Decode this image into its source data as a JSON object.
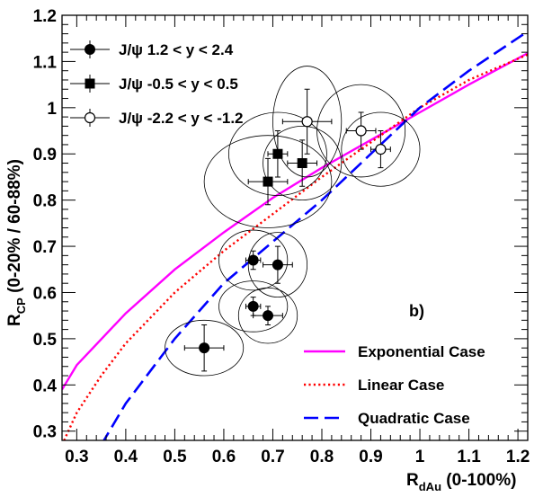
{
  "chart_data": {
    "type": "scatter",
    "title": "",
    "panel_label": "b)",
    "xlabel": {
      "main": "R",
      "sub": "dAu",
      "rest": " (0-100%)"
    },
    "ylabel": {
      "main": "R",
      "sub": "CP",
      "rest": " (0-20% / 60-88%)"
    },
    "xlim": [
      0.27,
      1.22
    ],
    "ylim": [
      0.28,
      1.2
    ],
    "x_ticks": [
      "0.3",
      "0.4",
      "0.5",
      "0.6",
      "0.7",
      "0.8",
      "0.9",
      "1",
      "1.1",
      "1.2"
    ],
    "y_ticks": [
      "0.3",
      "0.4",
      "0.5",
      "0.6",
      "0.7",
      "0.8",
      "0.9",
      "1",
      "1.1",
      "1.2"
    ],
    "legend_placement": "top-left",
    "series": [
      {
        "name": "J/ψ 1.2 < y < 2.4",
        "marker": "filled-circle",
        "points": [
          {
            "x": 0.56,
            "y": 0.48,
            "xerr": 0.04,
            "yerr": 0.05,
            "ex": 0.08,
            "ey": 0.06
          },
          {
            "x": 0.66,
            "y": 0.57,
            "xerr": 0.015,
            "yerr": 0.02,
            "ex": 0.07,
            "ey": 0.055
          },
          {
            "x": 0.69,
            "y": 0.55,
            "xerr": 0.03,
            "yerr": 0.02,
            "ex": 0.06,
            "ey": 0.06
          },
          {
            "x": 0.66,
            "y": 0.67,
            "xerr": 0.015,
            "yerr": 0.02,
            "ex": 0.07,
            "ey": 0.065
          },
          {
            "x": 0.71,
            "y": 0.66,
            "xerr": 0.03,
            "yerr": 0.04,
            "ex": 0.06,
            "ey": 0.07
          }
        ]
      },
      {
        "name": "J/ψ -0.5 < y < 0.5",
        "marker": "filled-square",
        "points": [
          {
            "x": 0.69,
            "y": 0.84,
            "xerr": 0.04,
            "yerr": 0.05,
            "ex": 0.13,
            "ey": 0.1
          },
          {
            "x": 0.71,
            "y": 0.9,
            "xerr": 0.02,
            "yerr": 0.05,
            "ex": 0.1,
            "ey": 0.09
          },
          {
            "x": 0.76,
            "y": 0.88,
            "xerr": 0.03,
            "yerr": 0.05,
            "ex": 0.08,
            "ey": 0.08
          }
        ]
      },
      {
        "name": "J/ψ -2.2 < y < -1.2",
        "marker": "open-circle",
        "points": [
          {
            "x": 0.77,
            "y": 0.97,
            "xerr": 0.05,
            "yerr": 0.07,
            "ex": 0.07,
            "ey": 0.12
          },
          {
            "x": 0.88,
            "y": 0.95,
            "xerr": 0.03,
            "yerr": 0.04,
            "ex": 0.09,
            "ey": 0.1
          },
          {
            "x": 0.92,
            "y": 0.91,
            "xerr": 0.02,
            "yerr": 0.04,
            "ex": 0.08,
            "ey": 0.08
          }
        ]
      }
    ],
    "curves": [
      {
        "name": "Exponential Case",
        "color": "#ff00ff",
        "style": "solid",
        "x": [
          0.27,
          0.3,
          0.4,
          0.5,
          0.6,
          0.7,
          0.8,
          0.9,
          1.0,
          1.1,
          1.22
        ],
        "y": [
          0.39,
          0.443,
          0.555,
          0.65,
          0.73,
          0.805,
          0.87,
          0.93,
          0.99,
          1.05,
          1.118
        ]
      },
      {
        "name": "Linear Case",
        "color": "#ff0000",
        "style": "dotted",
        "x": [
          0.27,
          0.3,
          0.35,
          0.4,
          0.5,
          0.6,
          0.7,
          0.8,
          0.9,
          1.0,
          1.1,
          1.22
        ],
        "y": [
          0.27,
          0.34,
          0.42,
          0.49,
          0.6,
          0.69,
          0.77,
          0.85,
          0.925,
          1.0,
          1.06,
          1.115
        ]
      },
      {
        "name": "Quadratic Case",
        "color": "#0000ff",
        "style": "dashed",
        "x": [
          0.35,
          0.4,
          0.5,
          0.6,
          0.7,
          0.8,
          0.9,
          1.0,
          1.1,
          1.22
        ],
        "y": [
          0.27,
          0.36,
          0.5,
          0.62,
          0.71,
          0.8,
          0.9,
          1.0,
          1.08,
          1.165
        ]
      }
    ]
  }
}
